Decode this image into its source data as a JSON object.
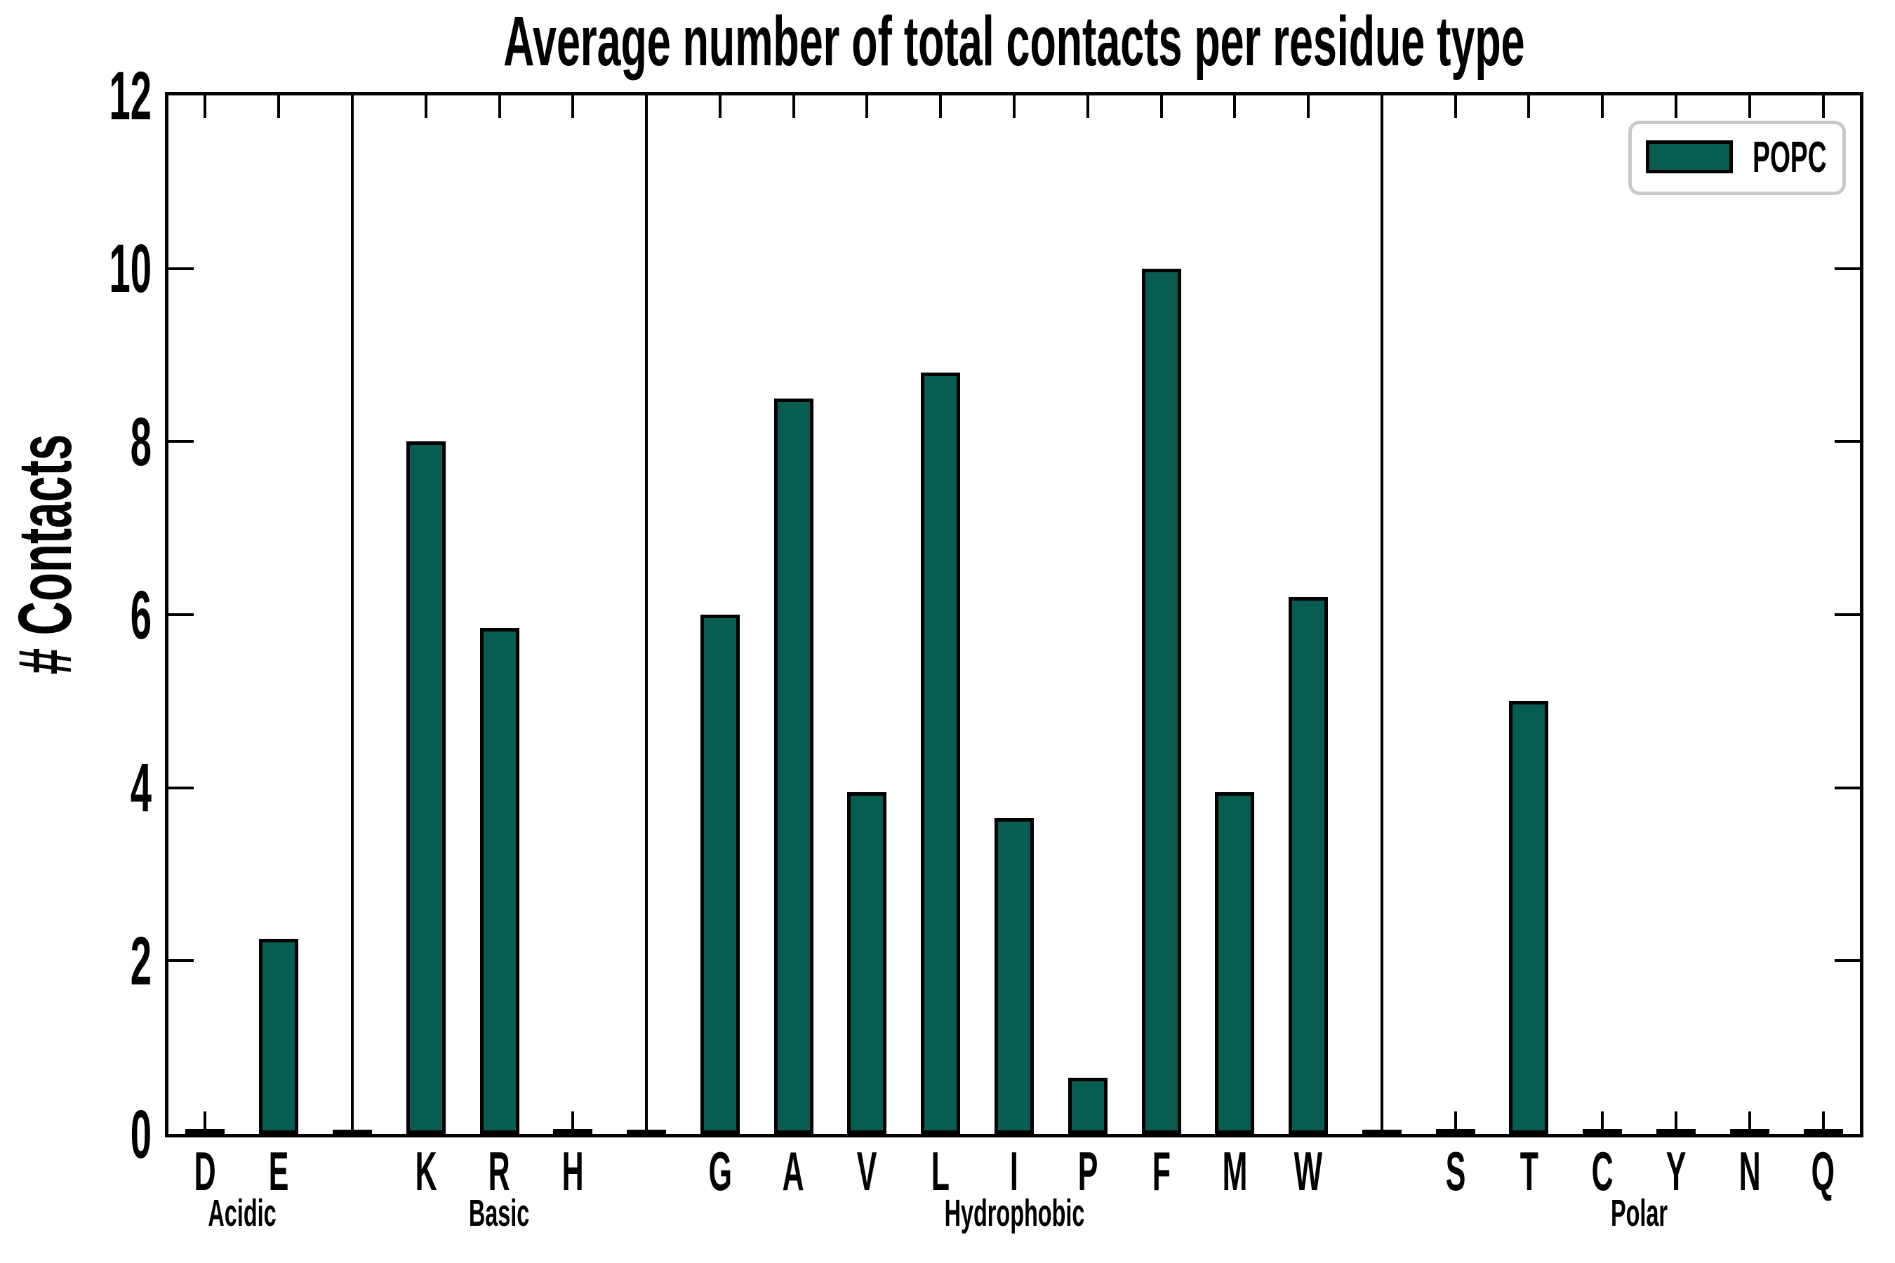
{
  "chart_data": {
    "type": "bar",
    "title": "Average number of total contacts per residue type",
    "xlabel": "",
    "ylabel": "# Contacts",
    "ylim": [
      0,
      12
    ],
    "yticks": [
      0,
      2,
      4,
      6,
      8,
      10,
      12
    ],
    "grid": false,
    "legend": [
      "POPC"
    ],
    "legend_position": "upper right",
    "bar_color": "#075d51",
    "bar_edge_color": "#000000",
    "groups": [
      {
        "label": "Acidic",
        "categories": [
          "D",
          "E"
        ],
        "values": [
          0.03,
          2.25
        ]
      },
      {
        "label": "Basic",
        "categories": [
          "K",
          "R",
          "H"
        ],
        "values": [
          8.0,
          5.85,
          0.03
        ]
      },
      {
        "label": "Hydrophobic",
        "categories": [
          "G",
          "A",
          "V",
          "L",
          "I",
          "P",
          "F",
          "M",
          "W"
        ],
        "values": [
          6.0,
          8.5,
          3.95,
          8.8,
          3.65,
          0.65,
          10.0,
          3.95,
          6.2
        ]
      },
      {
        "label": "Polar",
        "categories": [
          "S",
          "T",
          "C",
          "Y",
          "N",
          "Q"
        ],
        "values": [
          0.03,
          5.0,
          0.02,
          0.02,
          0.03,
          0.02
        ]
      }
    ],
    "group_separators": true
  },
  "colors": {
    "background": "#ffffff",
    "axis": "#000000",
    "bar_fill": "#075d51",
    "bar_edge": "#000000",
    "legend_border": "#c9c9c9",
    "text": "#000000"
  }
}
